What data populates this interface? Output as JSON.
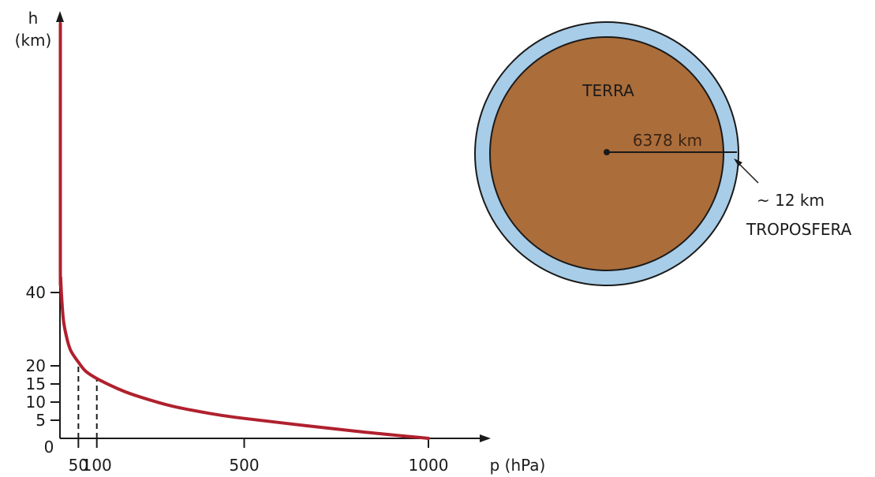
{
  "chart_data": {
    "type": "line",
    "y_axis_title_line1": "h",
    "y_axis_title_line2": "(km)",
    "x_axis_title": "p (hPa)",
    "origin_label": "0",
    "x_ticks": [
      "50",
      "100",
      "500",
      "1000"
    ],
    "y_ticks": [
      "5",
      "10",
      "15",
      "20",
      "40"
    ],
    "series": [
      {
        "x": [
          1000,
          800,
          500,
          400,
          300,
          200,
          150,
          100,
          70,
          50,
          30,
          20,
          10,
          5,
          2,
          1
        ],
        "y": [
          0,
          2,
          5.5,
          7,
          9,
          12,
          14,
          16.5,
          18.5,
          21,
          24,
          27,
          32,
          38,
          44,
          48
        ]
      }
    ],
    "reference_x": [
      50,
      100
    ],
    "xlim": [
      0,
      1150
    ],
    "ylim": [
      0,
      50
    ],
    "line_color": "#b0202e"
  },
  "earth_diagram": {
    "earth_label": "TERRA",
    "radius_label": "6378 km",
    "thickness_label": "~ 12 km",
    "layer_label": "TROPOSFERA",
    "earth_color": "#ab6d3a",
    "atmosphere_color": "#a8cde8"
  }
}
